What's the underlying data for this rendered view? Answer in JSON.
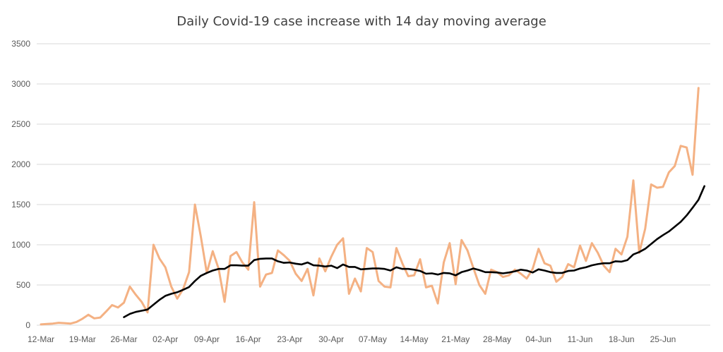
{
  "chart_data": {
    "type": "line",
    "title": "Daily Covid-19 case increase with 14 day moving average",
    "xlabel": "",
    "ylabel": "",
    "ylim": [
      0,
      3500
    ],
    "y_ticks": [
      "0",
      "500",
      "1000",
      "1500",
      "2000",
      "2500",
      "3000",
      "3500"
    ],
    "x_tick_labels": [
      "12-Mar",
      "19-Mar",
      "26-Mar",
      "02-Apr",
      "09-Apr",
      "16-Apr",
      "23-Apr",
      "30-Apr",
      "07-May",
      "14-May",
      "21-May",
      "28-May",
      "04-Jun",
      "11-Jun",
      "18-Jun",
      "25-Jun"
    ],
    "x_start": "12-Mar",
    "grid": "horizontal",
    "legend": "none",
    "series": [
      {
        "color": "#f4b183",
        "values": [
          10,
          15,
          20,
          30,
          25,
          20,
          40,
          80,
          130,
          85,
          95,
          170,
          250,
          220,
          280,
          480,
          380,
          290,
          160,
          1000,
          830,
          720,
          480,
          330,
          450,
          660,
          1500,
          1100,
          650,
          920,
          700,
          290,
          860,
          910,
          780,
          690,
          1530,
          480,
          630,
          650,
          930,
          870,
          800,
          640,
          550,
          700,
          370,
          830,
          670,
          850,
          1000,
          1080,
          390,
          580,
          420,
          960,
          910,
          550,
          480,
          470,
          960,
          770,
          610,
          620,
          820,
          470,
          490,
          270,
          780,
          1020,
          510,
          1060,
          930,
          710,
          500,
          390,
          690,
          660,
          600,
          620,
          690,
          640,
          580,
          700,
          950,
          770,
          740,
          540,
          600,
          760,
          720,
          990,
          800,
          1020,
          900,
          740,
          660,
          950,
          880,
          1100,
          1800,
          900,
          1200,
          1750,
          1710,
          1720,
          1900,
          1980,
          2230,
          2210,
          1870,
          2950
        ]
      },
      {
        "color": "#000000",
        "start_index": 14,
        "values": [
          100,
          140,
          165,
          180,
          195,
          255,
          315,
          365,
          390,
          410,
          440,
          475,
          550,
          615,
          650,
          680,
          700,
          700,
          745,
          745,
          740,
          740,
          810,
          825,
          830,
          830,
          795,
          775,
          780,
          765,
          755,
          780,
          745,
          740,
          730,
          740,
          710,
          755,
          725,
          725,
          695,
          700,
          705,
          705,
          700,
          680,
          720,
          700,
          700,
          690,
          675,
          640,
          645,
          630,
          650,
          645,
          620,
          660,
          680,
          705,
          685,
          660,
          660,
          655,
          645,
          655,
          670,
          690,
          680,
          655,
          695,
          680,
          660,
          650,
          650,
          675,
          680,
          705,
          720,
          745,
          760,
          770,
          770,
          795,
          790,
          810,
          880,
          910,
          950,
          1010,
          1070,
          1120,
          1165,
          1225,
          1285,
          1365,
          1460,
          1560,
          1730
        ]
      }
    ]
  }
}
